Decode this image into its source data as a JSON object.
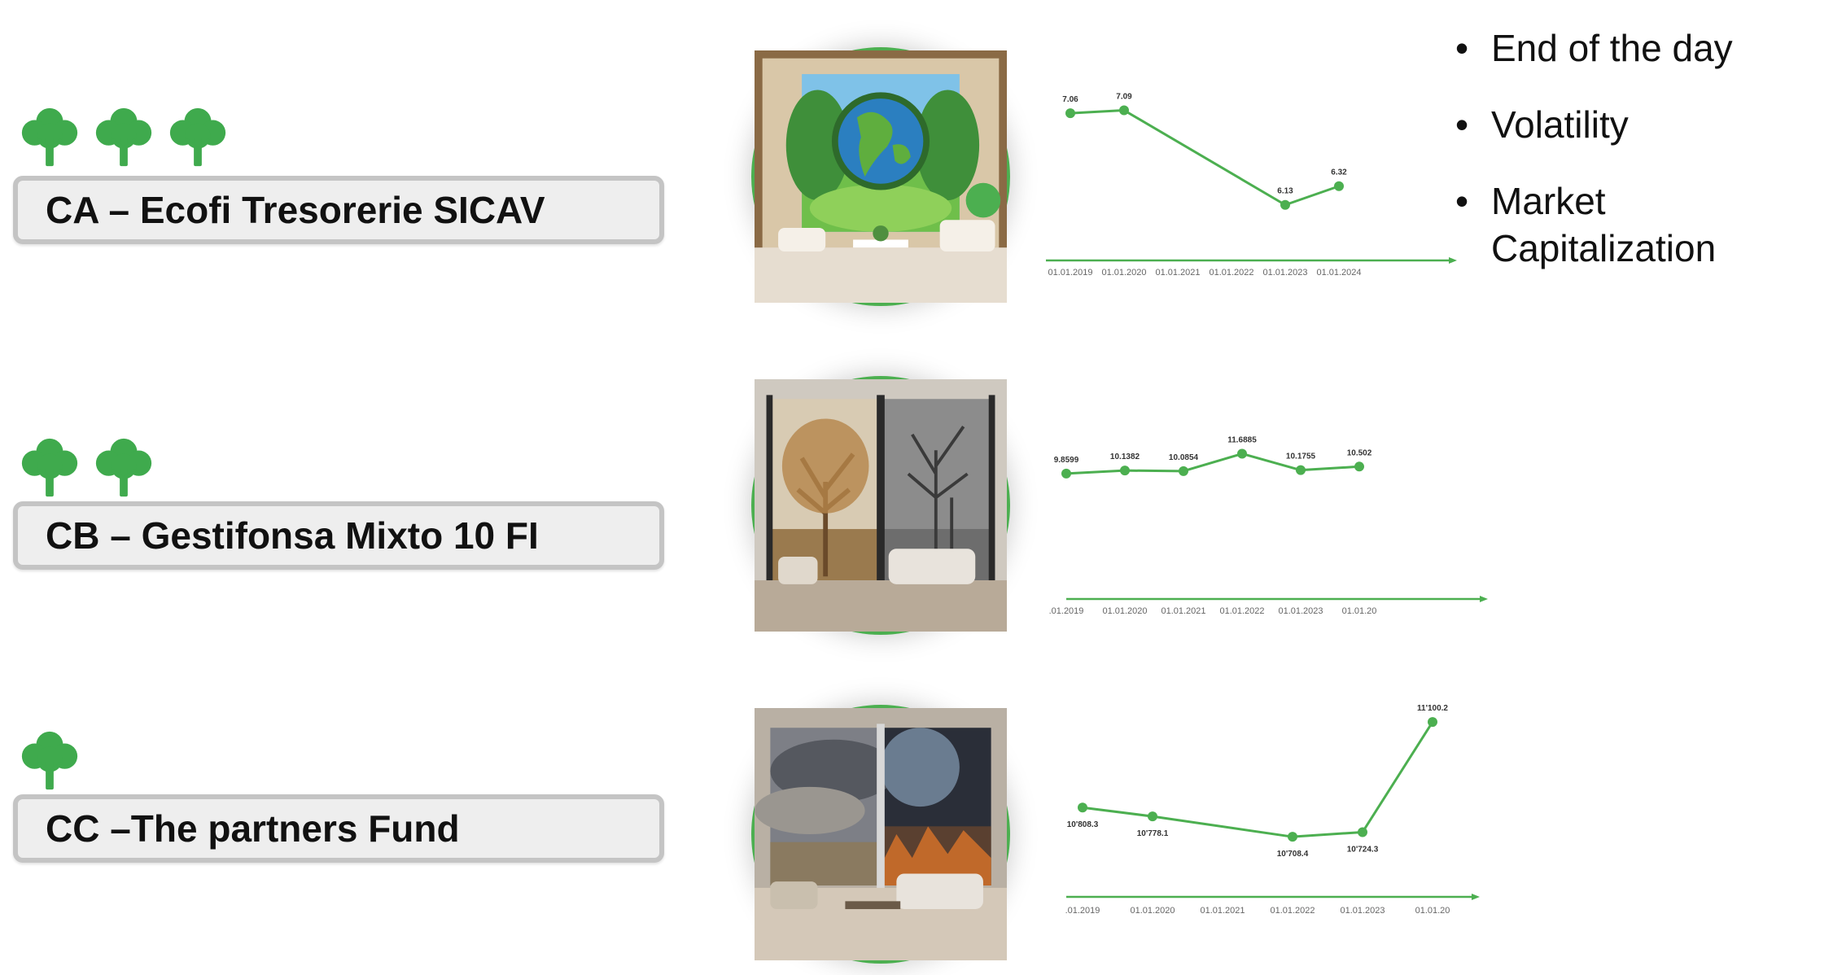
{
  "funds": [
    {
      "label": "CA – Ecofi Tresorerie SICAV",
      "tree_count": 3,
      "scene": "green-earth-window-room",
      "chart_data": {
        "type": "line",
        "x": [
          "01.01.2019",
          "01.01.2020",
          "01.01.2021",
          "01.01.2022",
          "01.01.2023",
          "01.01.2024"
        ],
        "values": [
          7.06,
          7.09,
          null,
          null,
          6.13,
          6.32
        ],
        "data_labels": [
          "7.06",
          "7.09",
          "",
          "",
          "6.13",
          "6.32"
        ],
        "ylim": [
          5.5,
          7.4
        ],
        "grid": false
      }
    },
    {
      "label": "CB – Gestifonsa Mixto 10 FI",
      "tree_count": 2,
      "scene": "autumn-winter-window-room",
      "chart_data": {
        "type": "line",
        "x": [
          ".01.2019",
          "01.01.2020",
          "01.01.2021",
          "01.01.2022",
          "01.01.2023",
          "01.01.20"
        ],
        "values": [
          9.8599,
          10.1382,
          10.0854,
          11.6885,
          10.1755,
          10.502
        ],
        "data_labels": [
          "9.8599",
          "10.1382",
          "10.0854",
          "11.6885",
          "10.1755",
          "10.502"
        ],
        "ylim": [
          4,
          13
        ],
        "grid": false
      }
    },
    {
      "label": "CC –The partners Fund",
      "tree_count": 1,
      "scene": "storm-earth-window-room",
      "chart_data": {
        "type": "line",
        "x": [
          ".01.2019",
          "01.01.2020",
          "01.01.2021",
          "01.01.2022",
          "01.01.2023",
          "01.01.20"
        ],
        "values": [
          10808.3,
          10778.1,
          null,
          10708.4,
          10724.3,
          11100.2
        ],
        "data_labels": [
          "10'808.3",
          "10'778.1",
          "",
          "10'708.4",
          "10'724.3",
          "11'100.2"
        ],
        "ylim": [
          10620,
          11120
        ],
        "grid": false
      }
    }
  ],
  "bullets": {
    "marker": "•",
    "items": [
      "End of the day",
      "Volatility",
      "Market Capitalization"
    ]
  },
  "colors": {
    "accent_green": "#4caf50",
    "box_fill": "#eeeeee",
    "box_border": "#c4c4c4",
    "tree_green": "#3faa4d"
  }
}
